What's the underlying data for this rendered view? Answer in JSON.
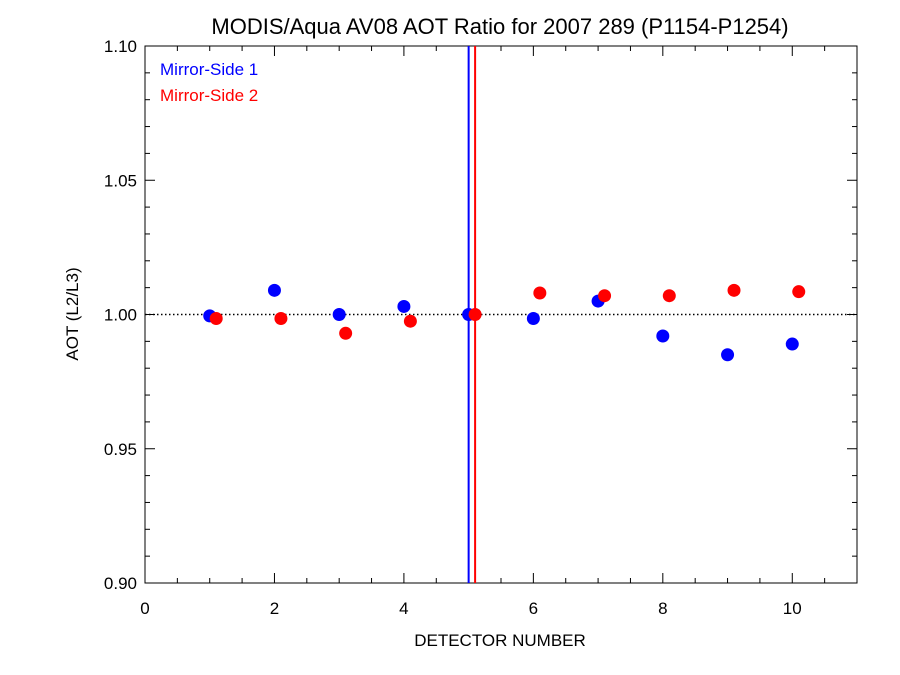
{
  "chart_data": {
    "type": "scatter",
    "title": "MODIS/Aqua AV08 AOT Ratio for 2007 289 (P1154-P1254)",
    "xlabel": "DETECTOR NUMBER",
    "ylabel": "AOT (L2/L3)",
    "xlim": [
      0,
      11
    ],
    "ylim": [
      0.9,
      1.1
    ],
    "x_ticks": [
      0,
      2,
      4,
      6,
      8,
      10
    ],
    "x_tick_labels": [
      "0",
      "2",
      "4",
      "6",
      "8",
      "10"
    ],
    "y_ticks": [
      0.9,
      0.95,
      1.0,
      1.05,
      1.1
    ],
    "y_tick_labels": [
      "0.90",
      "0.95",
      "1.00",
      "1.05",
      "1.10"
    ],
    "reference_line_y": 1.0,
    "vertical_lines": [
      {
        "x": 5.0,
        "color": "#0000ff"
      },
      {
        "x": 5.1,
        "color": "#ff0000"
      }
    ],
    "legend_position": "top-left",
    "series": [
      {
        "name": "Mirror-Side 1",
        "color": "#0000ff",
        "x": [
          1,
          2,
          3,
          4,
          5,
          6,
          7,
          8,
          9,
          10
        ],
        "y": [
          0.9995,
          1.009,
          1.0,
          1.003,
          1.0,
          0.9985,
          1.005,
          0.992,
          0.985,
          0.989
        ]
      },
      {
        "name": "Mirror-Side 2",
        "color": "#ff0000",
        "x": [
          1.1,
          2.1,
          3.1,
          4.1,
          5.1,
          6.1,
          7.1,
          8.1,
          9.1,
          10.1
        ],
        "y": [
          0.9985,
          0.9985,
          0.993,
          0.9975,
          1.0,
          1.008,
          1.007,
          1.007,
          1.009,
          1.0085
        ]
      }
    ]
  }
}
